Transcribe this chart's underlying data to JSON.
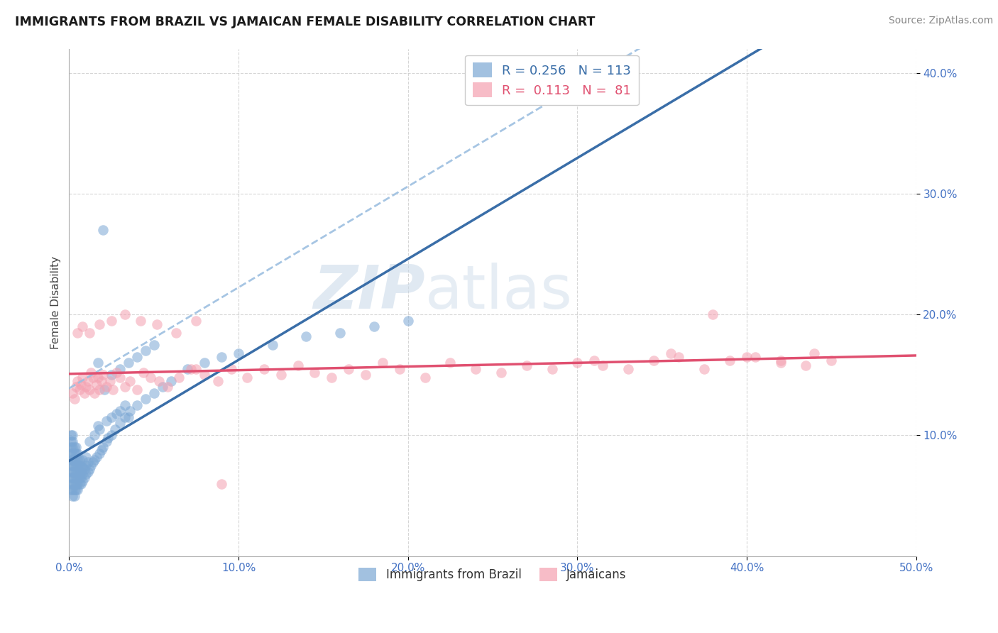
{
  "title": "IMMIGRANTS FROM BRAZIL VS JAMAICAN FEMALE DISABILITY CORRELATION CHART",
  "source": "Source: ZipAtlas.com",
  "xlabel": "",
  "ylabel": "Female Disability",
  "series1_label": "Immigrants from Brazil",
  "series2_label": "Jamaicans",
  "series1_R": 0.256,
  "series1_N": 113,
  "series2_R": 0.113,
  "series2_N": 81,
  "xlim": [
    0.0,
    0.5
  ],
  "ylim": [
    0.0,
    0.42
  ],
  "xticks": [
    0.0,
    0.1,
    0.2,
    0.3,
    0.4,
    0.5
  ],
  "yticks": [
    0.1,
    0.2,
    0.3,
    0.4
  ],
  "xtick_labels": [
    "0.0%",
    "10.0%",
    "20.0%",
    "30.0%",
    "40.0%",
    "50.0%"
  ],
  "ytick_labels": [
    "10.0%",
    "20.0%",
    "30.0%",
    "40.0%"
  ],
  "color_blue": "#7BA7D4",
  "color_pink": "#F4A0B0",
  "color_line_blue": "#3A6EA8",
  "color_line_pink": "#E05070",
  "color_dash_blue": "#9DBFE0",
  "color_title": "#1a1a1a",
  "color_axis_labels": "#4472C4",
  "background": "#FFFFFF",
  "watermark_zip": "ZIP",
  "watermark_atlas": "atlas",
  "series1_x": [
    0.001,
    0.001,
    0.001,
    0.001,
    0.001,
    0.001,
    0.001,
    0.001,
    0.001,
    0.001,
    0.002,
    0.002,
    0.002,
    0.002,
    0.002,
    0.002,
    0.002,
    0.002,
    0.002,
    0.002,
    0.002,
    0.003,
    0.003,
    0.003,
    0.003,
    0.003,
    0.003,
    0.003,
    0.003,
    0.003,
    0.004,
    0.004,
    0.004,
    0.004,
    0.004,
    0.004,
    0.004,
    0.004,
    0.005,
    0.005,
    0.005,
    0.005,
    0.005,
    0.005,
    0.005,
    0.006,
    0.006,
    0.006,
    0.006,
    0.006,
    0.007,
    0.007,
    0.007,
    0.007,
    0.008,
    0.008,
    0.008,
    0.008,
    0.009,
    0.009,
    0.01,
    0.01,
    0.01,
    0.011,
    0.011,
    0.012,
    0.013,
    0.014,
    0.015,
    0.016,
    0.017,
    0.018,
    0.019,
    0.02,
    0.021,
    0.022,
    0.023,
    0.025,
    0.027,
    0.03,
    0.033,
    0.036,
    0.04,
    0.045,
    0.05,
    0.055,
    0.06,
    0.07,
    0.08,
    0.09,
    0.1,
    0.12,
    0.14,
    0.16,
    0.18,
    0.2,
    0.02,
    0.025,
    0.03,
    0.035,
    0.04,
    0.045,
    0.05,
    0.012,
    0.015,
    0.018,
    0.025,
    0.03,
    0.035,
    0.017,
    0.022,
    0.028,
    0.033
  ],
  "series1_y": [
    0.055,
    0.06,
    0.065,
    0.07,
    0.075,
    0.08,
    0.085,
    0.09,
    0.095,
    0.1,
    0.05,
    0.055,
    0.06,
    0.065,
    0.07,
    0.075,
    0.08,
    0.085,
    0.09,
    0.095,
    0.1,
    0.05,
    0.055,
    0.06,
    0.065,
    0.07,
    0.075,
    0.08,
    0.085,
    0.09,
    0.055,
    0.06,
    0.065,
    0.07,
    0.075,
    0.08,
    0.085,
    0.09,
    0.055,
    0.06,
    0.065,
    0.07,
    0.075,
    0.08,
    0.085,
    0.06,
    0.065,
    0.07,
    0.075,
    0.08,
    0.06,
    0.065,
    0.07,
    0.075,
    0.062,
    0.068,
    0.074,
    0.08,
    0.065,
    0.072,
    0.068,
    0.075,
    0.082,
    0.07,
    0.078,
    0.072,
    0.075,
    0.078,
    0.08,
    0.082,
    0.16,
    0.085,
    0.088,
    0.09,
    0.138,
    0.095,
    0.098,
    0.1,
    0.105,
    0.11,
    0.115,
    0.12,
    0.125,
    0.13,
    0.135,
    0.14,
    0.145,
    0.155,
    0.16,
    0.165,
    0.168,
    0.175,
    0.182,
    0.185,
    0.19,
    0.195,
    0.27,
    0.15,
    0.155,
    0.16,
    0.165,
    0.17,
    0.175,
    0.095,
    0.1,
    0.105,
    0.115,
    0.12,
    0.115,
    0.108,
    0.112,
    0.118,
    0.125
  ],
  "series2_x": [
    0.002,
    0.003,
    0.004,
    0.005,
    0.006,
    0.007,
    0.008,
    0.009,
    0.01,
    0.011,
    0.012,
    0.013,
    0.014,
    0.015,
    0.016,
    0.017,
    0.018,
    0.019,
    0.02,
    0.022,
    0.024,
    0.026,
    0.028,
    0.03,
    0.033,
    0.036,
    0.04,
    0.044,
    0.048,
    0.053,
    0.058,
    0.065,
    0.072,
    0.08,
    0.088,
    0.096,
    0.105,
    0.115,
    0.125,
    0.135,
    0.145,
    0.155,
    0.165,
    0.175,
    0.185,
    0.195,
    0.21,
    0.225,
    0.24,
    0.255,
    0.27,
    0.285,
    0.3,
    0.315,
    0.33,
    0.345,
    0.36,
    0.375,
    0.39,
    0.405,
    0.42,
    0.435,
    0.45,
    0.005,
    0.008,
    0.012,
    0.018,
    0.025,
    0.033,
    0.042,
    0.052,
    0.063,
    0.075,
    0.31,
    0.355,
    0.38,
    0.4,
    0.42,
    0.44,
    0.075,
    0.09
  ],
  "series2_y": [
    0.135,
    0.13,
    0.14,
    0.145,
    0.138,
    0.142,
    0.148,
    0.135,
    0.14,
    0.145,
    0.138,
    0.152,
    0.148,
    0.135,
    0.142,
    0.148,
    0.138,
    0.145,
    0.15,
    0.14,
    0.145,
    0.138,
    0.152,
    0.148,
    0.14,
    0.145,
    0.138,
    0.152,
    0.148,
    0.145,
    0.14,
    0.148,
    0.155,
    0.15,
    0.145,
    0.155,
    0.148,
    0.155,
    0.15,
    0.158,
    0.152,
    0.148,
    0.155,
    0.15,
    0.16,
    0.155,
    0.148,
    0.16,
    0.155,
    0.152,
    0.158,
    0.155,
    0.16,
    0.158,
    0.155,
    0.162,
    0.165,
    0.155,
    0.162,
    0.165,
    0.16,
    0.158,
    0.162,
    0.185,
    0.19,
    0.185,
    0.192,
    0.195,
    0.2,
    0.195,
    0.192,
    0.185,
    0.195,
    0.162,
    0.168,
    0.2,
    0.165,
    0.162,
    0.168,
    0.155,
    0.06
  ]
}
